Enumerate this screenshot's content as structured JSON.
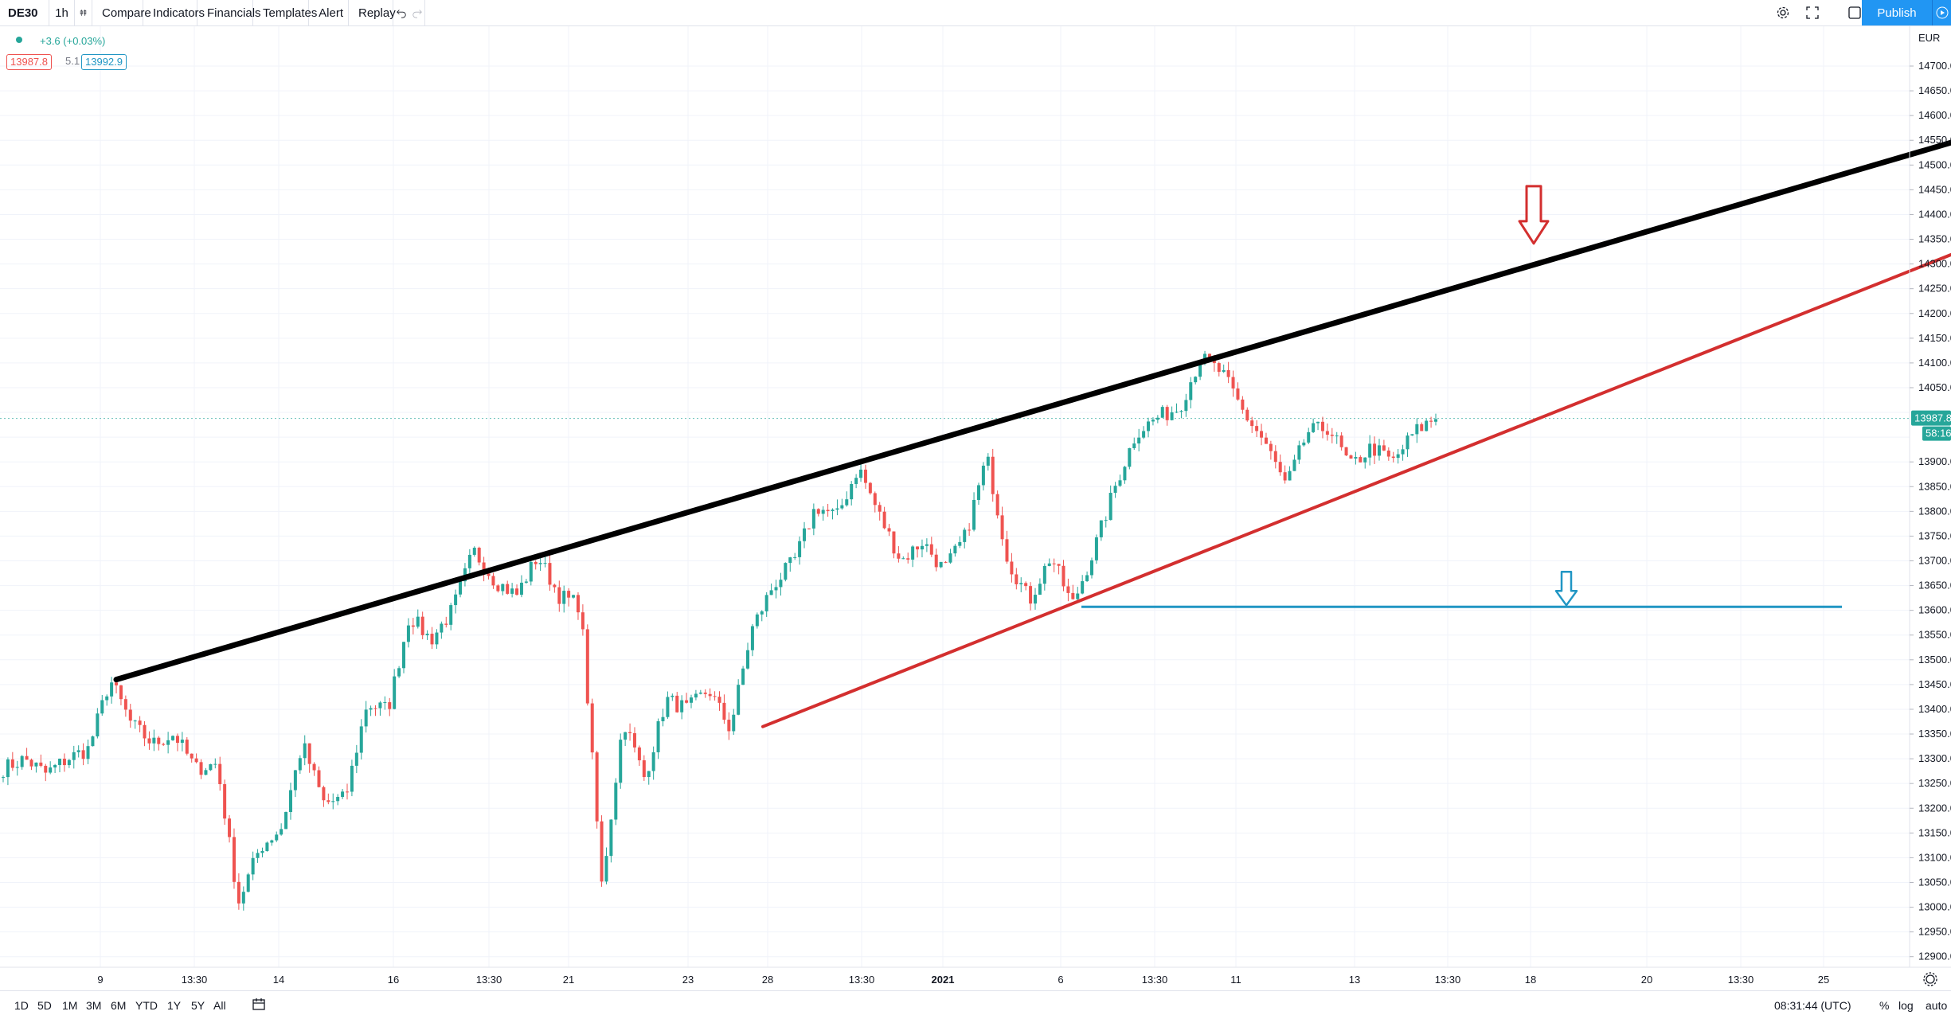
{
  "toolbar": {
    "symbol": "DE30",
    "interval": "1h",
    "compare": "Compare",
    "indicators": "Indicators",
    "financials": "Financials",
    "templates": "Templates",
    "alert": "Alert",
    "replay": "Replay",
    "publish": "Publish"
  },
  "legend": {
    "change": "+3.6 (+0.03%)",
    "bid": "13987.8",
    "spread": "5.1",
    "ask": "13992.9"
  },
  "price_axis": {
    "currency": "EUR",
    "labels": [
      "14700.0",
      "14650.0",
      "14600.0",
      "14550.0",
      "14500.0",
      "14450.0",
      "14400.0",
      "14350.0",
      "14300.0",
      "14250.0",
      "14200.0",
      "14150.0",
      "14100.0",
      "14050.0",
      "13900.0",
      "13850.0",
      "13800.0",
      "13750.0",
      "13700.0",
      "13650.0",
      "13600.0",
      "13550.0",
      "13500.0",
      "13450.0",
      "13400.0",
      "13350.0",
      "13300.0",
      "13250.0",
      "13200.0",
      "13150.0",
      "13100.0",
      "13050.0",
      "13000.0",
      "12950.0",
      "12900.0"
    ],
    "last_price": "13987.8",
    "countdown": "58:16"
  },
  "time_axis": {
    "labels": [
      "9",
      "13:30",
      "14",
      "16",
      "13:30",
      "21",
      "23",
      "28",
      "13:30",
      "2021",
      "6",
      "13:30",
      "11",
      "13",
      "13:30",
      "18",
      "20",
      "13:30",
      "25"
    ]
  },
  "bottombar": {
    "ranges": [
      "1D",
      "5D",
      "1M",
      "3M",
      "6M",
      "YTD",
      "1Y",
      "5Y",
      "All"
    ],
    "clock": "08:31:44 (UTC)",
    "percent": "%",
    "log": "log",
    "auto": "auto"
  },
  "colors": {
    "up": "#26a69a",
    "down": "#ef5350",
    "resistance": "#000000",
    "support": "#d32f2f",
    "level": "#2196c4",
    "accent": "#2196f3"
  },
  "chart_data": {
    "type": "candlestick",
    "symbol": "DE30",
    "interval": "1h",
    "ylim": [
      12870,
      14725
    ],
    "trendlines": [
      {
        "role": "resistance",
        "color": "black",
        "from": [
          13460
        ],
        "to": [
          14550
        ]
      },
      {
        "role": "support",
        "color": "red",
        "from": [
          13365
        ],
        "to": [
          14320
        ]
      },
      {
        "role": "horizontal-level",
        "color": "blue",
        "value": 13607
      }
    ],
    "anchor_path": [
      13280,
      13300,
      13270,
      13300,
      13320,
      13460,
      13370,
      13330,
      13350,
      13280,
      13290,
      13010,
      13120,
      13160,
      13330,
      13210,
      13220,
      13410,
      13400,
      13590,
      13540,
      13600,
      13720,
      13660,
      13630,
      13710,
      13630,
      13610,
      13040,
      13380,
      13260,
      13420,
      13400,
      13440,
      13360,
      13560,
      13650,
      13700,
      13810,
      13790,
      13890,
      13790,
      13700,
      13740,
      13680,
      13750,
      13910,
      13700,
      13620,
      13710,
      13610,
      13720,
      13850,
      13960,
      13990,
      14010,
      14110,
      14080,
      14000,
      13940,
      13850,
      13960,
      13970,
      13890,
      13930,
      13900,
      13960,
      13990
    ]
  }
}
